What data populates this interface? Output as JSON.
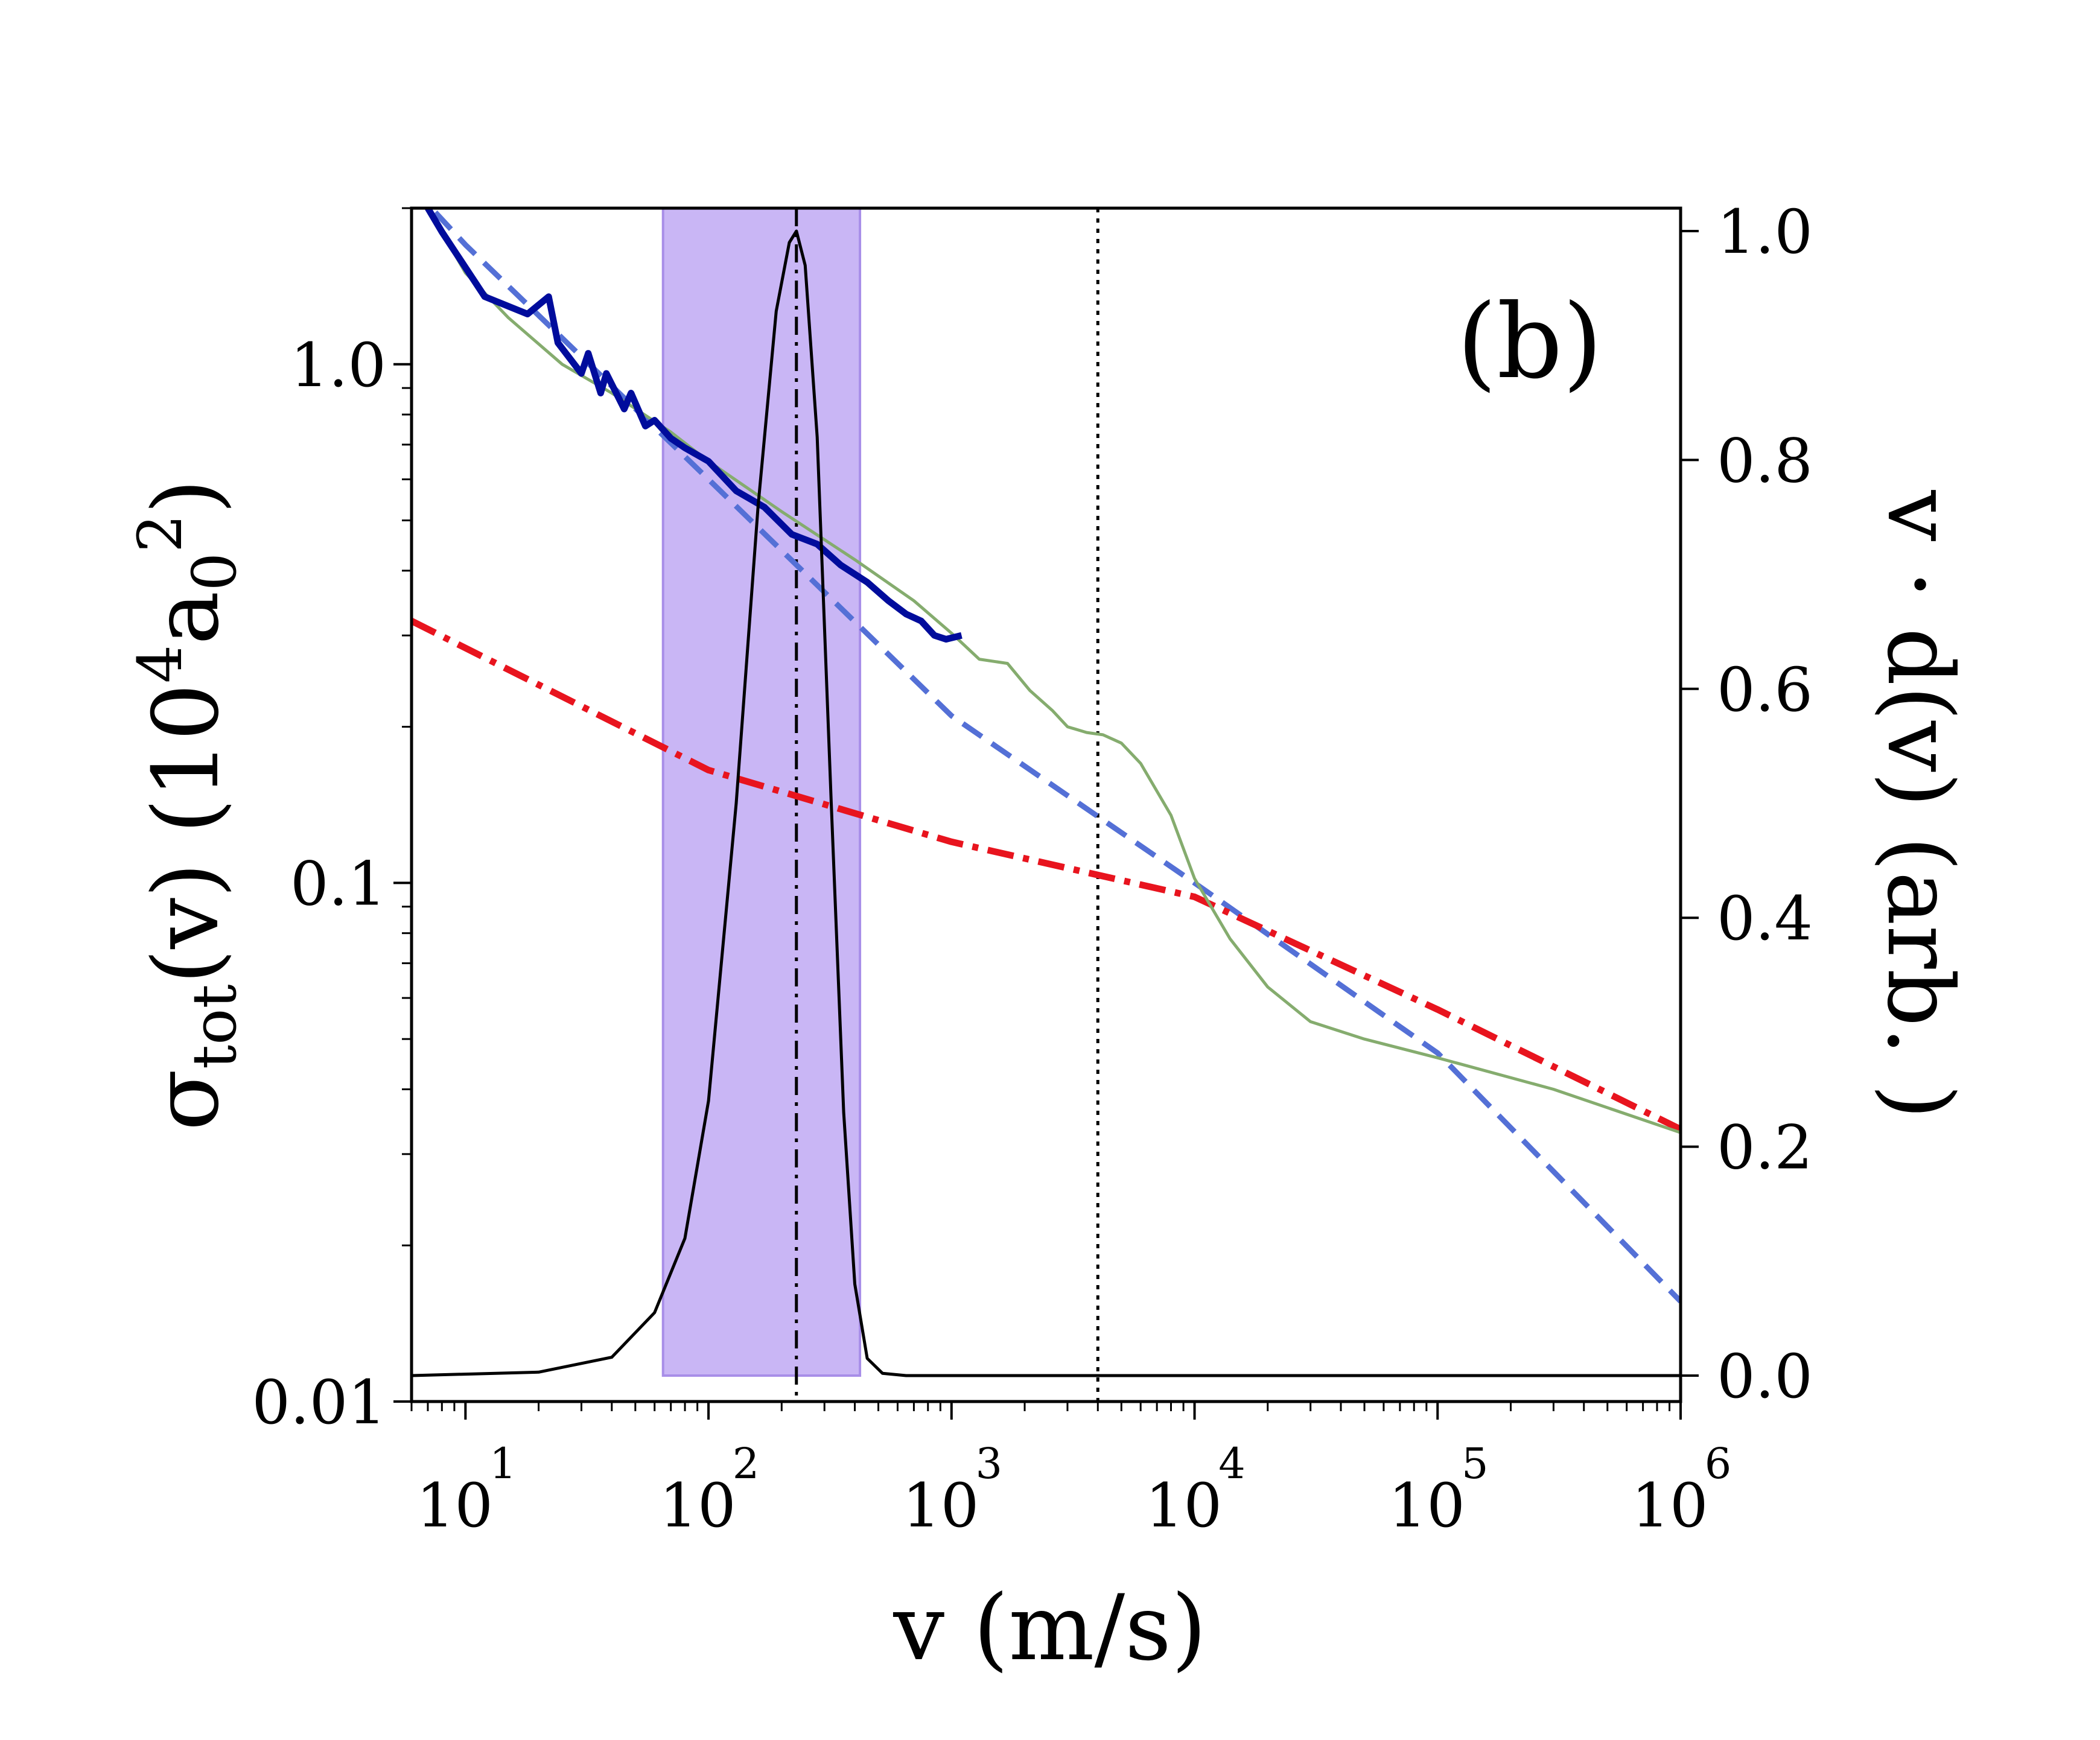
{
  "chart_data": {
    "type": "line",
    "panel_label": "(b)",
    "x_axis": {
      "label": "v (m/s)",
      "scale": "log",
      "range": [
        6,
        1000000
      ],
      "tick_labels": [
        {
          "value": 10,
          "base": "10",
          "exp": "1"
        },
        {
          "value": 100,
          "base": "10",
          "exp": "2"
        },
        {
          "value": 1000,
          "base": "10",
          "exp": "3"
        },
        {
          "value": 10000,
          "base": "10",
          "exp": "4"
        },
        {
          "value": 100000,
          "base": "10",
          "exp": "5"
        },
        {
          "value": 1000000,
          "base": "10",
          "exp": "6"
        }
      ]
    },
    "y_left": {
      "label_main": "σ",
      "label_sub": "tot",
      "label_rest": "(v)",
      "unit_open": "(",
      "unit_base": "10",
      "unit_exp": "4",
      "unit_sym": "a",
      "unit_sub": "0",
      "unit_sup": "2",
      "unit_close": ")",
      "scale": "log",
      "range": [
        0.01,
        2.0
      ],
      "tick_labels": [
        {
          "value": 0.01,
          "label": "0.01"
        },
        {
          "value": 0.1,
          "label": "0.1"
        },
        {
          "value": 1.0,
          "label": "1.0"
        }
      ]
    },
    "y_right": {
      "label": "v · d(v) (arb. )",
      "range": [
        0.0,
        1.0
      ],
      "tick_labels": [
        {
          "value": 0.0,
          "label": "0.0"
        },
        {
          "value": 0.2,
          "label": "0.2"
        },
        {
          "value": 0.4,
          "label": "0.4"
        },
        {
          "value": 0.6,
          "label": "0.6"
        },
        {
          "value": 0.8,
          "label": "0.8"
        },
        {
          "value": 1.0,
          "label": "1.0"
        }
      ]
    },
    "shaded_region": {
      "x_min": 65,
      "x_max": 420,
      "color": "#c9b6f5",
      "edge": "#a88ee8"
    },
    "vlines": [
      {
        "name": "peak-velocity",
        "x": 230,
        "style": "dashdot",
        "color": "#000000"
      },
      {
        "name": "threshold-velocity",
        "x": 4000,
        "style": "dotted",
        "color": "#000000"
      }
    ],
    "series": [
      {
        "name": "power-law-fit",
        "axis": "left",
        "style": "dashed",
        "color": "#5470d6",
        "x": [
          6,
          10,
          100,
          1000,
          10000,
          100000,
          1000000
        ],
        "y": [
          2.2,
          1.7,
          0.6,
          0.21,
          0.1,
          0.047,
          0.0156
        ]
      },
      {
        "name": "alt-power-law",
        "axis": "left",
        "style": "dashdot",
        "color": "#e8141e",
        "x": [
          6,
          100,
          1000,
          10000,
          100000,
          1000000
        ],
        "y": [
          0.32,
          0.165,
          0.12,
          0.094,
          0.057,
          0.0335
        ]
      },
      {
        "name": "numerical-cross-section",
        "axis": "left",
        "style": "solid",
        "color": "#85ac6e",
        "x": [
          6,
          8,
          10,
          15,
          25,
          40,
          70,
          100,
          200,
          400,
          700,
          1000,
          1300,
          1700,
          2100,
          2600,
          3000,
          3600,
          4200,
          5000,
          6000,
          8000,
          10000,
          14000,
          20000,
          30000,
          50000,
          100000,
          300000,
          1000000
        ],
        "y": [
          2.2,
          1.8,
          1.5,
          1.23,
          1.0,
          0.88,
          0.74,
          0.65,
          0.52,
          0.42,
          0.35,
          0.303,
          0.27,
          0.265,
          0.235,
          0.215,
          0.2,
          0.195,
          0.193,
          0.186,
          0.17,
          0.135,
          0.102,
          0.078,
          0.063,
          0.054,
          0.05,
          0.046,
          0.04,
          0.033
        ]
      },
      {
        "name": "quantum-cross-section",
        "axis": "left",
        "style": "solid",
        "color": "#000c9c",
        "x": [
          7,
          8,
          12,
          18,
          22,
          24,
          30,
          32,
          36,
          38,
          45,
          48,
          55,
          60,
          70,
          80,
          100,
          130,
          170,
          220,
          280,
          350,
          450,
          550,
          650,
          750,
          850,
          950,
          1100
        ],
        "y": [
          2.0,
          1.8,
          1.35,
          1.25,
          1.35,
          1.1,
          0.96,
          1.05,
          0.88,
          0.96,
          0.82,
          0.88,
          0.76,
          0.78,
          0.72,
          0.69,
          0.65,
          0.57,
          0.53,
          0.47,
          0.45,
          0.41,
          0.38,
          0.35,
          0.33,
          0.32,
          0.3,
          0.295,
          0.3
        ]
      },
      {
        "name": "velocity-distribution",
        "axis": "right",
        "style": "solid",
        "color": "#000000",
        "x": [
          6,
          20,
          40,
          60,
          80,
          100,
          130,
          160,
          190,
          215,
          230,
          250,
          280,
          320,
          360,
          400,
          450,
          520,
          650,
          1000,
          1000000
        ],
        "y": [
          0.0,
          0.003,
          0.016,
          0.055,
          0.12,
          0.24,
          0.5,
          0.76,
          0.93,
          0.99,
          1.0,
          0.97,
          0.82,
          0.5,
          0.23,
          0.08,
          0.015,
          0.002,
          0.0,
          0.0,
          0.0
        ]
      }
    ]
  }
}
